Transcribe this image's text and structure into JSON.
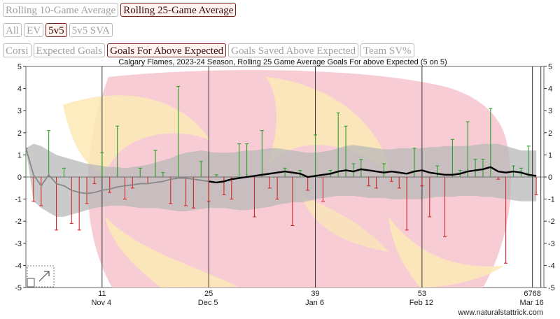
{
  "toolbar": {
    "window_buttons": [
      {
        "label": "Rolling 10-Game Average",
        "active": false
      },
      {
        "label": "Rolling 25-Game Average",
        "active": true
      }
    ],
    "strength_buttons": [
      {
        "label": "All",
        "active": false
      },
      {
        "label": "EV",
        "active": false
      },
      {
        "label": "5v5",
        "active": true
      },
      {
        "label": "5v5 SVA",
        "active": false
      }
    ],
    "metric_buttons": [
      {
        "label": "Corsi",
        "active": false
      },
      {
        "label": "Expected Goals",
        "active": false
      },
      {
        "label": "Goals For Above Expected",
        "active": true
      },
      {
        "label": "Goals Saved Above Expected",
        "active": false
      },
      {
        "label": "Team SV%",
        "active": false
      }
    ]
  },
  "chart_data": {
    "type": "line",
    "title": "Calgary Flames, 2023-24 Season, Rolling 25 Game Average Goals For above Expected (5 on 5)",
    "ylim": [
      -5,
      5
    ],
    "yticks": [
      5,
      4,
      3,
      2,
      1,
      0,
      -1,
      -2,
      -3,
      -4,
      -5
    ],
    "xlim": [
      1,
      69
    ],
    "xticks": [
      {
        "x": 11,
        "game": "11",
        "date": "Nov 4"
      },
      {
        "x": 25,
        "game": "25",
        "date": "Dec 5"
      },
      {
        "x": 39,
        "game": "39",
        "date": "Jan 6"
      },
      {
        "x": 53,
        "game": "53",
        "date": "Feb 12"
      },
      {
        "x": 67.5,
        "game": "6768",
        "date": "Mar 16"
      }
    ],
    "watermark": "www.naturalstattrick.com",
    "colors": {
      "positive": "#2ca02c",
      "negative": "#d62728",
      "avg": "#000000",
      "avg_early": "#888888",
      "band": "#b8b8b8"
    },
    "game_values": [
      1.3,
      -1.1,
      -1.3,
      2.1,
      -2.4,
      0.4,
      -2.1,
      -2.4,
      -1.2,
      -0.3,
      1.1,
      -0.7,
      2.3,
      -1.0,
      -0.5,
      0.4,
      -0.3,
      1.2,
      0.2,
      -1.2,
      4.1,
      -1.3,
      -1.4,
      0.7,
      -1.1,
      0.1,
      -0.8,
      -1.0,
      1.5,
      1.5,
      -1.8,
      2.1,
      -0.5,
      -1.0,
      0.4,
      -2.2,
      0.3,
      -0.6,
      1.9,
      -1.1,
      0.3,
      2.9,
      2.3,
      0.6,
      0.8,
      -0.4,
      -0.5,
      0.6,
      -0.2,
      -0.5,
      -2.4,
      1.3,
      -0.4,
      -1.8,
      0.5,
      -2.7,
      1.7,
      0.3,
      2.5,
      0.8,
      0.8,
      3.1,
      -0.1,
      -3.9,
      0.5,
      0.4,
      1.4,
      -0.8
    ],
    "rolling_avg": [
      1.3,
      0.1,
      -0.4,
      0.1,
      -0.3,
      -0.4,
      -0.6,
      -0.7,
      -0.75,
      -0.7,
      -0.6,
      -0.55,
      -0.45,
      -0.4,
      -0.35,
      -0.3,
      -0.3,
      -0.25,
      -0.2,
      -0.1,
      -0.05,
      -0.05,
      -0.1,
      -0.15,
      -0.2,
      -0.25,
      -0.2,
      -0.1,
      -0.05,
      0.0,
      0.05,
      0.1,
      0.15,
      0.2,
      0.25,
      0.2,
      0.15,
      0.0,
      0.05,
      0.1,
      0.15,
      0.25,
      0.3,
      0.25,
      0.35,
      0.3,
      0.25,
      0.2,
      0.25,
      0.2,
      0.15,
      0.25,
      0.3,
      0.2,
      0.15,
      0.1,
      0.1,
      0.15,
      0.25,
      0.3,
      0.35,
      0.45,
      0.25,
      0.2,
      0.25,
      0.2,
      0.1,
      0.05
    ],
    "band_upper": [
      1.3,
      1.5,
      1.4,
      1.2,
      1.0,
      0.9,
      0.8,
      0.7,
      0.6,
      0.55,
      0.5,
      0.45,
      0.45,
      0.4,
      0.45,
      0.5,
      0.55,
      0.65,
      0.75,
      0.85,
      1.0,
      1.1,
      1.15,
      1.2,
      1.15,
      1.1,
      1.1,
      1.1,
      1.15,
      1.2,
      1.2,
      1.25,
      1.3,
      1.3,
      1.25,
      1.2,
      1.15,
      1.1,
      1.1,
      1.15,
      1.2,
      1.3,
      1.4,
      1.45,
      1.4,
      1.35,
      1.3,
      1.25,
      1.25,
      1.3,
      1.3,
      1.3,
      1.3,
      1.35,
      1.35,
      1.4,
      1.4,
      1.4,
      1.4,
      1.45,
      1.5,
      1.5,
      1.5,
      1.4,
      1.3,
      1.2,
      1.2,
      1.2
    ],
    "band_lower": [
      1.3,
      -1.1,
      -1.4,
      -1.6,
      -1.8,
      -1.8,
      -1.7,
      -1.6,
      -1.5,
      -1.4,
      -1.35,
      -1.3,
      -1.3,
      -1.3,
      -1.35,
      -1.4,
      -1.4,
      -1.4,
      -1.45,
      -1.5,
      -1.55,
      -1.55,
      -1.5,
      -1.45,
      -1.4,
      -1.4,
      -1.4,
      -1.45,
      -1.5,
      -1.5,
      -1.45,
      -1.4,
      -1.35,
      -1.25,
      -1.2,
      -1.15,
      -1.15,
      -1.1,
      -1.0,
      -0.95,
      -0.9,
      -0.85,
      -0.85,
      -0.85,
      -0.9,
      -0.95,
      -0.95,
      -0.95,
      -1.0,
      -1.0,
      -1.0,
      -1.0,
      -1.0,
      -0.95,
      -0.9,
      -0.9,
      -0.9,
      -0.85,
      -0.85,
      -0.85,
      -0.9,
      -0.9,
      -0.95,
      -1.0,
      -1.05,
      -1.1,
      -1.1,
      -1.1
    ]
  }
}
